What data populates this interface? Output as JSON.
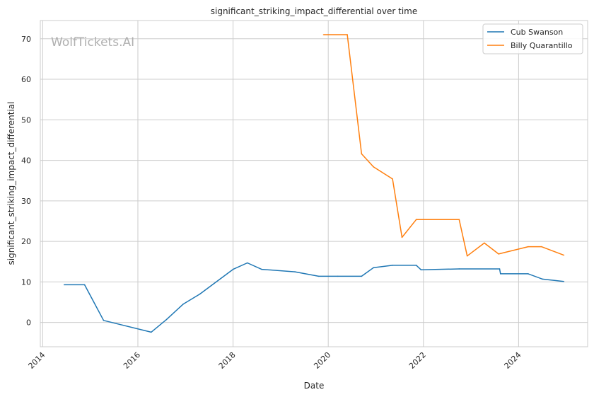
{
  "chart_data": {
    "type": "line",
    "title": "significant_striking_impact_differential over time",
    "xlabel": "Date",
    "ylabel": "significant_striking_impact_differential",
    "watermark": "WolfTickets.AI",
    "xlim": [
      2013.95,
      2025.45
    ],
    "ylim": [
      -6,
      74.5
    ],
    "xticks": [
      2014,
      2016,
      2018,
      2020,
      2022,
      2024
    ],
    "xtick_labels": [
      "2014",
      "2016",
      "2018",
      "2020",
      "2022",
      "2024"
    ],
    "yticks": [
      0,
      10,
      20,
      30,
      40,
      50,
      60,
      70
    ],
    "ytick_labels": [
      "0",
      "10",
      "20",
      "30",
      "40",
      "50",
      "60",
      "70"
    ],
    "grid": true,
    "legend_position": "top-right",
    "series": [
      {
        "name": "Cub Swanson",
        "color": "#1f77b4",
        "x": [
          2014.45,
          2014.88,
          2015.28,
          2016.28,
          2016.6,
          2016.95,
          2017.3,
          2018.0,
          2018.3,
          2018.6,
          2019.3,
          2019.8,
          2020.2,
          2020.7,
          2020.95,
          2021.35,
          2021.85,
          2021.95,
          2022.75,
          2023.6,
          2023.62,
          2024.2,
          2024.5,
          2024.95
        ],
        "y": [
          9.3,
          9.3,
          0.5,
          -2.4,
          0.7,
          4.5,
          7.0,
          13.1,
          14.7,
          13.1,
          12.5,
          11.4,
          11.4,
          11.4,
          13.5,
          14.1,
          14.1,
          13.0,
          13.2,
          13.2,
          12.0,
          12.0,
          10.7,
          10.1
        ]
      },
      {
        "name": "Billy Quarantillo",
        "color": "#ff7f0e",
        "x": [
          2019.9,
          2020.4,
          2020.7,
          2020.95,
          2021.35,
          2021.55,
          2021.85,
          2022.75,
          2022.92,
          2023.28,
          2023.58,
          2024.2,
          2024.48,
          2024.95
        ],
        "y": [
          71.0,
          71.0,
          41.6,
          38.4,
          35.4,
          21.0,
          25.4,
          25.4,
          16.4,
          19.6,
          16.9,
          18.7,
          18.7,
          16.6
        ]
      }
    ]
  }
}
